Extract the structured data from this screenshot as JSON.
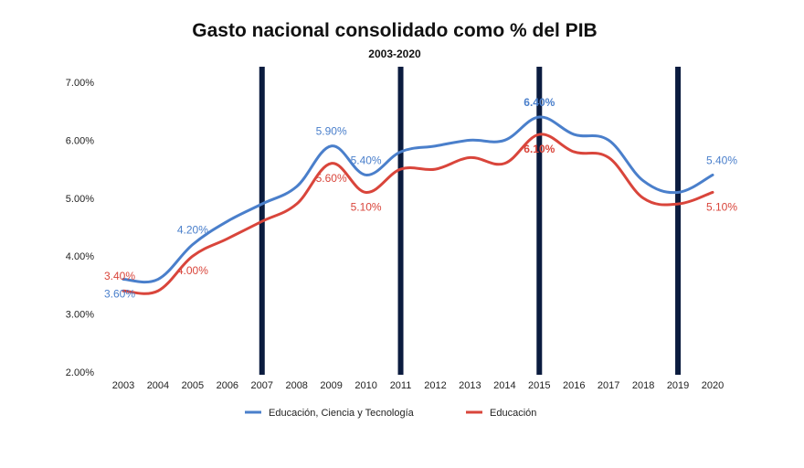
{
  "chart_data": {
    "type": "line",
    "title": "Gasto nacional consolidado como % del PIB",
    "subtitle": "2003-2020",
    "xlabel": "",
    "ylabel": "",
    "categories": [
      "2003",
      "2004",
      "2005",
      "2006",
      "2007",
      "2008",
      "2009",
      "2010",
      "2011",
      "2012",
      "2013",
      "2014",
      "2015",
      "2016",
      "2017",
      "2018",
      "2019",
      "2020"
    ],
    "ylim": [
      2,
      7
    ],
    "yticks": [
      "2.00%",
      "3.00%",
      "4.00%",
      "5.00%",
      "6.00%",
      "7.00%"
    ],
    "grid": false,
    "legend_position": "bottom",
    "series": [
      {
        "name": "Educación, Ciencia y Tecnología",
        "color": "#4a7fcb",
        "values": [
          3.6,
          3.6,
          4.2,
          4.6,
          4.9,
          5.2,
          5.9,
          5.4,
          5.8,
          5.9,
          6.0,
          6.0,
          6.4,
          6.1,
          6.0,
          5.3,
          5.1,
          5.4
        ]
      },
      {
        "name": "Educación",
        "color": "#d9453b",
        "values": [
          3.4,
          3.4,
          4.0,
          4.3,
          4.6,
          4.9,
          5.6,
          5.1,
          5.5,
          5.5,
          5.7,
          5.6,
          6.1,
          5.8,
          5.7,
          5.0,
          4.9,
          5.1
        ]
      }
    ],
    "data_labels": [
      {
        "series": 0,
        "category": "2003",
        "text": "3.60%",
        "pos": "below"
      },
      {
        "series": 1,
        "category": "2003",
        "text": "3.40%",
        "pos": "above"
      },
      {
        "series": 0,
        "category": "2005",
        "text": "4.20%",
        "pos": "above"
      },
      {
        "series": 1,
        "category": "2005",
        "text": "4.00%",
        "pos": "below"
      },
      {
        "series": 0,
        "category": "2009",
        "text": "5.90%",
        "pos": "above"
      },
      {
        "series": 1,
        "category": "2009",
        "text": "5.60%",
        "pos": "below"
      },
      {
        "series": 0,
        "category": "2010",
        "text": "5.40%",
        "pos": "above"
      },
      {
        "series": 1,
        "category": "2010",
        "text": "5.10%",
        "pos": "below"
      },
      {
        "series": 0,
        "category": "2015",
        "text": "6.40%",
        "pos": "above",
        "bold": true
      },
      {
        "series": 1,
        "category": "2015",
        "text": "6.10%",
        "pos": "below",
        "bold": true
      },
      {
        "series": 0,
        "category": "2020",
        "text": "5.40%",
        "pos": "above"
      },
      {
        "series": 1,
        "category": "2020",
        "text": "5.10%",
        "pos": "below"
      }
    ],
    "markers": {
      "categories": [
        "2007",
        "2011",
        "2015",
        "2019"
      ],
      "color": "#0b1c3f"
    }
  }
}
